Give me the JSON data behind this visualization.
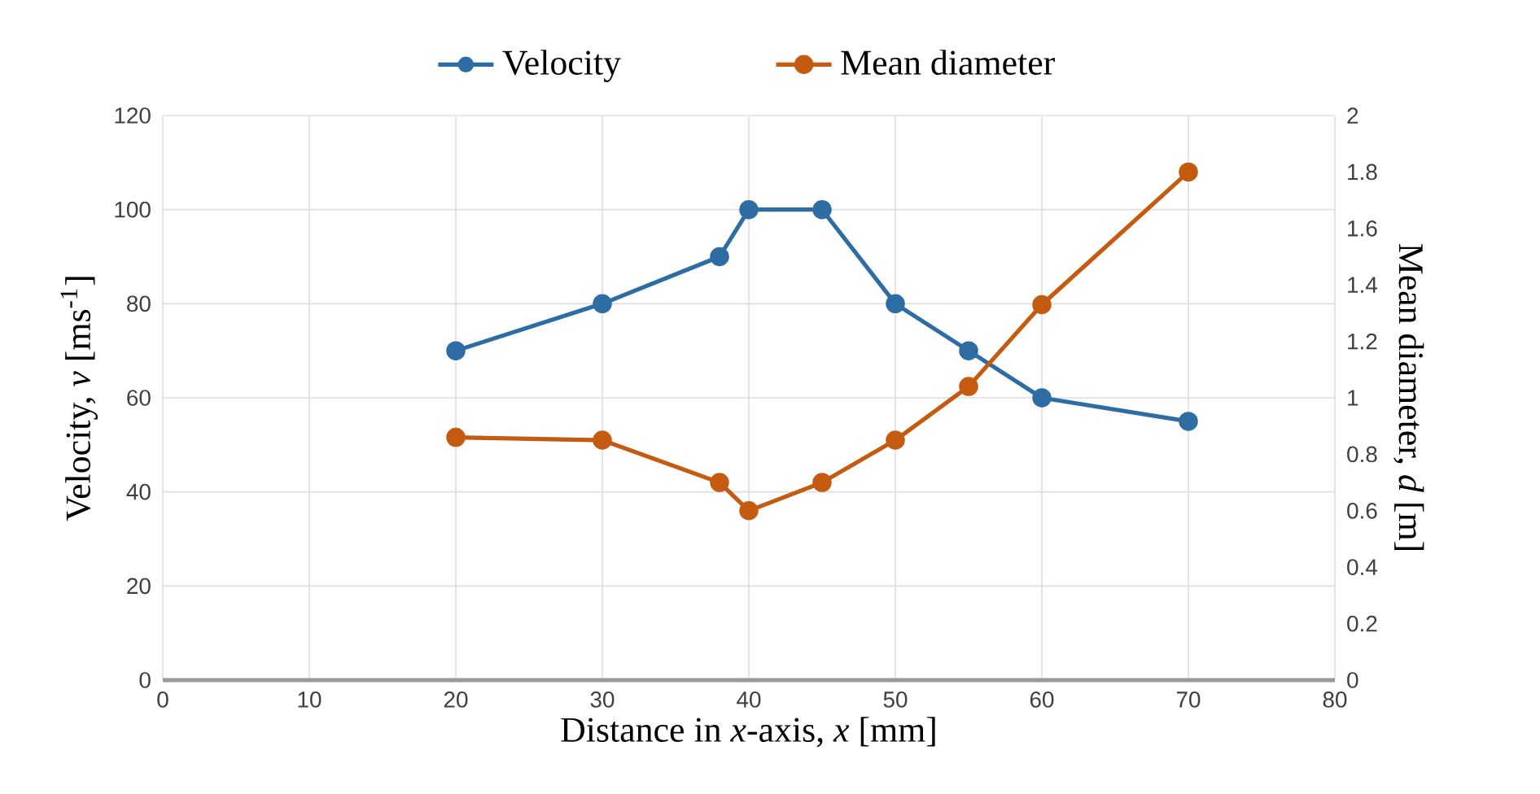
{
  "chart_data": {
    "type": "line",
    "xlabel": "Distance in *x*-axis, *x* [mm]",
    "ylabel": "Velocity, *v* [ms$^{-1}$]",
    "y2label": "Mean diameter, *d* [m]",
    "x": [
      20,
      30,
      38,
      40,
      45,
      50,
      55,
      60,
      70
    ],
    "series": [
      {
        "name": "Velocity",
        "color": "#2e6da4",
        "values": [
          70,
          80,
          90,
          100,
          100,
          80,
          70,
          60,
          55
        ]
      },
      {
        "name": "Mean diameter",
        "color": "#c55a11",
        "axis": "y2",
        "values": [
          0.86,
          0.85,
          0.7,
          0.6,
          0.7,
          0.85,
          1.04,
          1.33,
          1.8
        ]
      }
    ],
    "xlim": [
      0,
      80
    ],
    "xticks": [
      0,
      10,
      20,
      30,
      40,
      50,
      60,
      70,
      80
    ],
    "ylim": [
      0,
      120
    ],
    "yticks": [
      0,
      20,
      40,
      60,
      80,
      100,
      120
    ],
    "y2lim": [
      0,
      2
    ],
    "y2ticks": [
      0,
      0.2,
      0.4,
      0.6,
      0.8,
      1,
      1.2,
      1.4,
      1.6,
      1.8,
      2
    ],
    "grid": true,
    "legend": "top",
    "marker": "circle",
    "line_style": "solid"
  }
}
